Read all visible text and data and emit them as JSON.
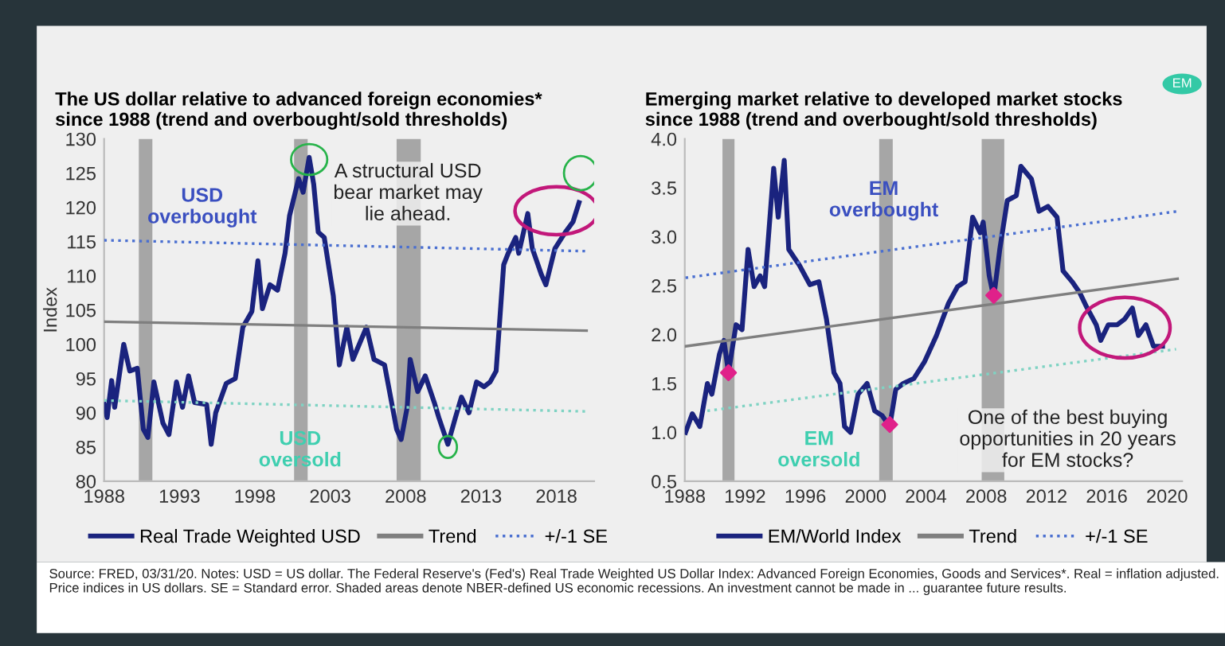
{
  "chart_data": [
    {
      "type": "line",
      "title": "The US dollar relative to advanced foreign economies*\nsince 1988 (trend and overbought/sold thresholds)",
      "ylabel": "Index",
      "xlim": [
        1988,
        2020.5
      ],
      "xticks": [
        1988,
        1993,
        1998,
        2003,
        2008,
        2013,
        2018
      ],
      "ylim": [
        80,
        130
      ],
      "yticks": [
        80,
        85,
        90,
        95,
        100,
        105,
        110,
        115,
        120,
        125,
        130
      ],
      "grid": false,
      "legend": "bottom",
      "bands": [
        {
          "axis": "x",
          "from": 1990.3,
          "to": 1991.2,
          "color": "#a6a6a6"
        },
        {
          "axis": "x",
          "from": 2000.6,
          "to": 2001.5,
          "color": "#a6a6a6"
        },
        {
          "axis": "x",
          "from": 2007.4,
          "to": 2009.0,
          "color": "#a6a6a6"
        }
      ],
      "series": [
        {
          "name": "Real Trade Weighted USD",
          "color": "#1a237e",
          "x": [
            1988.0,
            1988.2,
            1988.5,
            1988.7,
            1989.3,
            1989.7,
            1990.2,
            1990.6,
            1990.9,
            1991.3,
            1991.9,
            1992.3,
            1992.8,
            1993.2,
            1993.6,
            1994.0,
            1994.8,
            1995.1,
            1995.4,
            1996.1,
            1996.7,
            1997.2,
            1997.8,
            1998.2,
            1998.5,
            1999.0,
            1999.5,
            2000.0,
            2000.3,
            2000.9,
            2001.2,
            2001.6,
            2001.9,
            2002.2,
            2002.6,
            2003.2,
            2003.6,
            2004.1,
            2004.5,
            2005.4,
            2005.9,
            2006.6,
            2007.4,
            2007.7,
            2008.1,
            2008.3,
            2008.8,
            2009.3,
            2009.9,
            2010.2,
            2010.8,
            2011.3,
            2011.7,
            2012.2,
            2012.7,
            2013.2,
            2013.6,
            2014.0,
            2014.5,
            2014.8,
            2015.3,
            2015.5,
            2016.1,
            2016.4,
            2017.0,
            2017.3,
            2017.9,
            2018.6,
            2019.1,
            2019.5
          ],
          "values": [
            91.2,
            89.3,
            94.7,
            90.8,
            100,
            96.1,
            96.5,
            87.6,
            86.4,
            94.5,
            88.5,
            86.8,
            94.5,
            90.8,
            95.4,
            91.5,
            91.2,
            85.4,
            90.0,
            94.3,
            95.0,
            102.5,
            104.8,
            112.2,
            105.2,
            108.7,
            107.9,
            113.3,
            118.8,
            124.2,
            122.2,
            127.3,
            123.4,
            116.4,
            115.6,
            107.1,
            97,
            102.5,
            97.8,
            102.5,
            97.8,
            97,
            87.6,
            86.1,
            90.8,
            97.8,
            93.1,
            95.4,
            91.5,
            89.3,
            85.4,
            89.3,
            92.3,
            90.0,
            94.5,
            93.8,
            94.5,
            96.1,
            111.6,
            113.3,
            115.6,
            113.3,
            119.1,
            114.0,
            110.2,
            108.7,
            114.0,
            116.4,
            117.9,
            120.7
          ]
        },
        {
          "name": "Trend",
          "color": "#7f7f7f",
          "x": [
            1988,
            2020
          ],
          "values": [
            103.3,
            102.0
          ]
        },
        {
          "name": "+/-1 SE",
          "color": "#4a6fd0",
          "line_style": "dotted",
          "x": [
            1988,
            2020
          ],
          "values": [
            115.2,
            113.6
          ]
        },
        {
          "color": "#7fd3c3",
          "line_style": "dotted",
          "x": [
            1988,
            2020
          ],
          "values": [
            91.8,
            90.2
          ]
        }
      ],
      "annotations": [
        "USD\noverbought",
        "USD\noversold",
        "A structural USD\nbear market may\nlie ahead.",
        "Source: FRED, 03/31/20. Notes: USD = US dollar. The Federal Reserve's (Fed's) Real Trade Weighted US Dollar Index: Advanced Foreign Economies, Goods and Services*. Real = inflation adjusted. Price indices in US dollars. SE = Standard error. Shaded areas denote NBER-defined US economic recessions. An investment cannot be made in ... guarantee future results."
      ]
    },
    {
      "type": "line",
      "title": "Emerging market relative to developed market stocks\nsince 1988 (trend and overbought/sold thresholds)",
      "xlim": [
        1988,
        2021
      ],
      "xticks": [
        1988,
        1992,
        1996,
        2000,
        2004,
        2008,
        2012,
        2016,
        2020
      ],
      "ylim": [
        0.5,
        4.0
      ],
      "yticks": [
        {
          "value": 0.5,
          "label": "0.5"
        },
        {
          "value": 1.0,
          "label": "1.0"
        },
        {
          "value": 1.5,
          "label": "1.5"
        },
        {
          "value": 2.0,
          "label": "2.0"
        },
        {
          "value": 2.5,
          "label": "2.5"
        },
        {
          "value": 3.0,
          "label": "3.0"
        },
        {
          "value": 3.5,
          "label": "3.5"
        },
        {
          "value": 4.0,
          "label": "4.0"
        }
      ],
      "grid": false,
      "legend": "bottom",
      "bands": [
        {
          "axis": "x",
          "from": 1990.5,
          "to": 1991.3,
          "color": "#a6a6a6"
        },
        {
          "axis": "x",
          "from": 2000.9,
          "to": 2001.8,
          "color": "#a6a6a6"
        },
        {
          "axis": "x",
          "from": 2007.7,
          "to": 2009.2,
          "color": "#a6a6a6"
        }
      ],
      "series": [
        {
          "name": "EM/World Index",
          "color": "#1a237e",
          "x": [
            1988.05,
            1988.5,
            1989.0,
            1989.5,
            1989.8,
            1990.3,
            1990.6,
            1990.9,
            1991.4,
            1991.8,
            1992.2,
            1992.6,
            1993.0,
            1993.3,
            1993.9,
            1994.2,
            1994.6,
            1994.9,
            1995.6,
            1996.3,
            1996.9,
            1997.4,
            1997.9,
            1998.3,
            1998.6,
            1999.0,
            1999.5,
            2000.1,
            2000.6,
            2001.1,
            2001.6,
            2002.0,
            2002.5,
            2003.2,
            2003.9,
            2004.7,
            2005.5,
            2006.1,
            2006.6,
            2007.1,
            2007.6,
            2007.8,
            2008.2,
            2008.5,
            2008.9,
            2009.4,
            2010.0,
            2010.3,
            2011.0,
            2011.5,
            2012.1,
            2012.7,
            2013.1,
            2013.7,
            2014.2,
            2014.7,
            2015.3,
            2015.6,
            2016.1,
            2016.7,
            2017.2,
            2017.7,
            2018.1,
            2018.6,
            2019.1,
            2019.7
          ],
          "values": [
            1.0,
            1.19,
            1.06,
            1.5,
            1.39,
            1.8,
            1.94,
            1.61,
            2.1,
            2.05,
            2.87,
            2.49,
            2.6,
            2.49,
            3.7,
            3.2,
            3.78,
            2.87,
            2.71,
            2.51,
            2.54,
            2.16,
            1.61,
            1.5,
            1.06,
            1.0,
            1.39,
            1.5,
            1.22,
            1.17,
            1.06,
            1.44,
            1.5,
            1.55,
            1.72,
            1.99,
            2.32,
            2.49,
            2.54,
            3.2,
            3.04,
            3.15,
            2.6,
            2.38,
            2.87,
            3.37,
            3.42,
            3.72,
            3.59,
            3.26,
            3.31,
            3.2,
            2.65,
            2.54,
            2.43,
            2.27,
            2.1,
            1.94,
            2.1,
            2.1,
            2.16,
            2.27,
            1.99,
            2.1,
            1.88,
            1.88
          ]
        },
        {
          "type": "scatter",
          "color": "#e0218a",
          "marker": "diamond",
          "x": [
            1990.9,
            2001.6,
            2008.5
          ],
          "values": [
            1.61,
            1.08,
            2.4
          ]
        },
        {
          "name": "Trend",
          "color": "#7f7f7f",
          "x": [
            1988.05,
            2020.7
          ],
          "values": [
            1.88,
            2.57
          ]
        },
        {
          "name": "+/-1 SE",
          "color": "#4a6fd0",
          "line_style": "dotted",
          "x": [
            1988.05,
            2020.7
          ],
          "values": [
            2.58,
            3.26
          ]
        },
        {
          "color": "#7fd3c3",
          "line_style": "dotted",
          "x": [
            1989.5,
            2020.6
          ],
          "values": [
            1.22,
            1.85
          ]
        }
      ],
      "annotations": [
        "EM\noverbought",
        "EM\noversold",
        "One of the best buying\nopportunities in 20 years\nfor EM stocks?",
        "EM"
      ]
    }
  ]
}
